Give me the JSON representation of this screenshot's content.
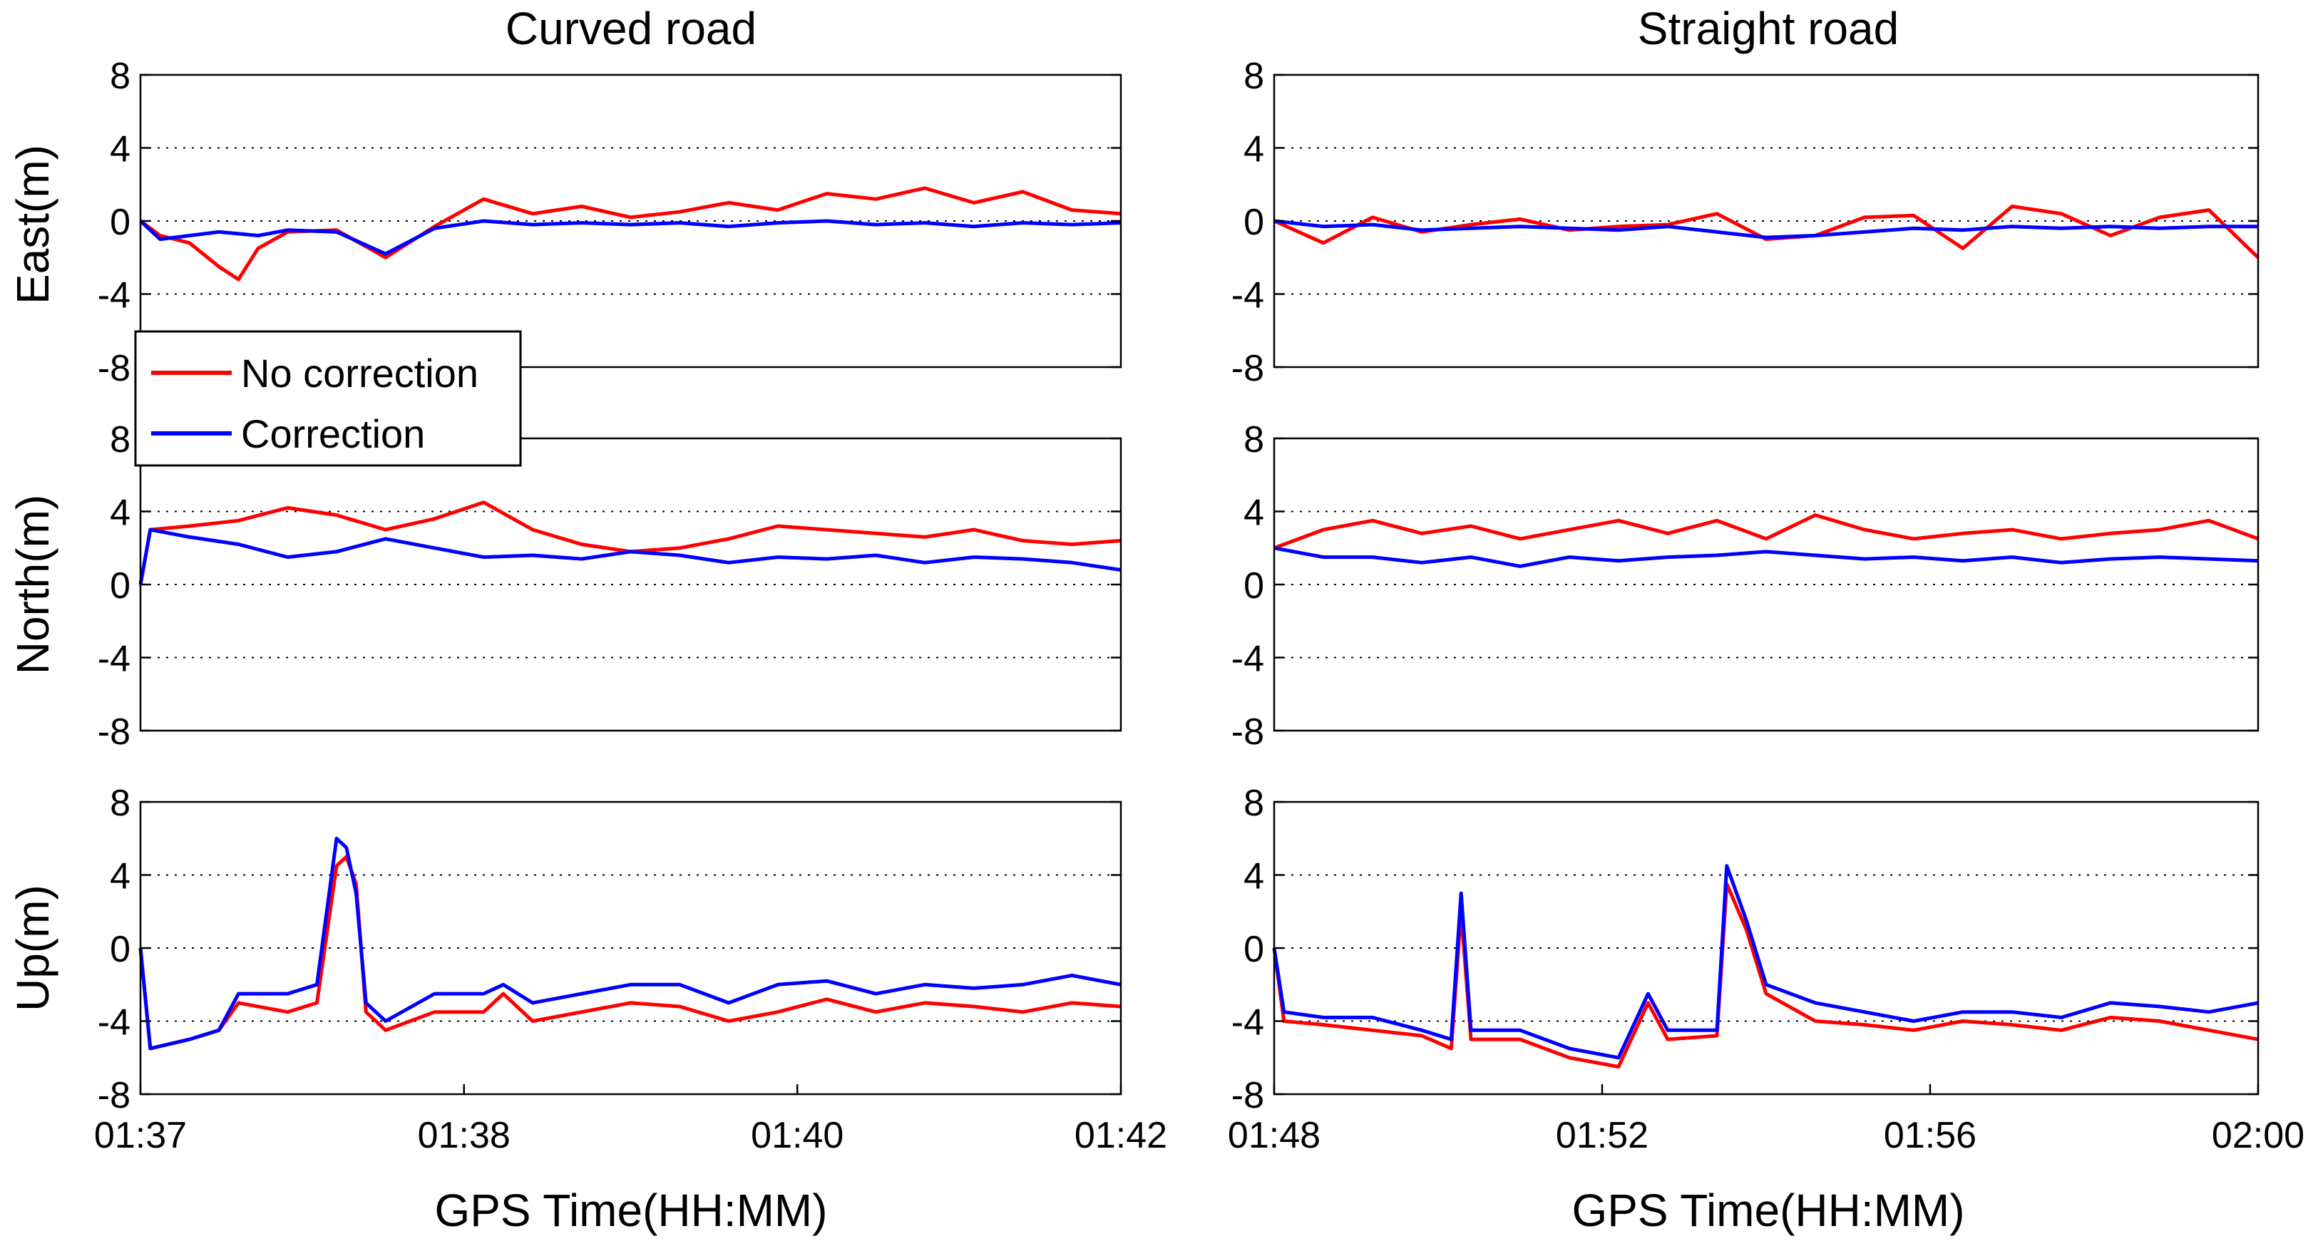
{
  "figure": {
    "col_titles": [
      "Curved road",
      "Straight road"
    ],
    "xlabel": "GPS Time(HH:MM)",
    "row_labels": [
      "East(m)",
      "North(m)",
      "Up(m)"
    ],
    "colors": {
      "no_correction": "#ff0000",
      "correction": "#0000ff",
      "grid": "#000000"
    },
    "legend": {
      "entries": [
        "No correction",
        "Correction"
      ],
      "location": "lower-left of top-left panel"
    }
  },
  "chart_data": [
    {
      "type": "line",
      "panel": "curved-east",
      "title": "Curved road",
      "ylabel": "East(m)",
      "xlabel": "",
      "ylim": [
        -8,
        8
      ],
      "yticks": [
        "8",
        "4",
        "0",
        "-4",
        "-8"
      ],
      "xticks": [],
      "grid": "dotted-y",
      "x": [
        0,
        0.02,
        0.05,
        0.08,
        0.1,
        0.12,
        0.15,
        0.2,
        0.25,
        0.3,
        0.35,
        0.4,
        0.45,
        0.5,
        0.55,
        0.6,
        0.65,
        0.7,
        0.75,
        0.8,
        0.85,
        0.9,
        0.95,
        1.0
      ],
      "series": [
        {
          "name": "No correction",
          "values": [
            0,
            -0.8,
            -1.2,
            -2.5,
            -3.2,
            -1.5,
            -0.6,
            -0.5,
            -2.0,
            -0.3,
            1.2,
            0.4,
            0.8,
            0.2,
            0.5,
            1.0,
            0.6,
            1.5,
            1.2,
            1.8,
            1.0,
            1.6,
            0.6,
            0.4
          ]
        },
        {
          "name": "Correction",
          "values": [
            0,
            -1.0,
            -0.8,
            -0.6,
            -0.7,
            -0.8,
            -0.5,
            -0.6,
            -1.8,
            -0.4,
            0.0,
            -0.2,
            -0.1,
            -0.2,
            -0.1,
            -0.3,
            -0.1,
            0.0,
            -0.2,
            -0.1,
            -0.3,
            -0.1,
            -0.2,
            -0.1
          ]
        }
      ]
    },
    {
      "type": "line",
      "panel": "straight-east",
      "title": "Straight road",
      "ylabel": "",
      "xlabel": "",
      "ylim": [
        -8,
        8
      ],
      "yticks": [
        "8",
        "4",
        "0",
        "-4",
        "-8"
      ],
      "xticks": [],
      "grid": "dotted-y",
      "x": [
        0,
        0.05,
        0.1,
        0.15,
        0.2,
        0.25,
        0.3,
        0.35,
        0.4,
        0.45,
        0.5,
        0.55,
        0.6,
        0.65,
        0.7,
        0.75,
        0.8,
        0.85,
        0.9,
        0.95,
        1.0
      ],
      "series": [
        {
          "name": "No correction",
          "values": [
            0,
            -1.2,
            0.2,
            -0.6,
            -0.2,
            0.1,
            -0.5,
            -0.3,
            -0.2,
            0.4,
            -1.0,
            -0.8,
            0.2,
            0.3,
            -1.5,
            0.8,
            0.4,
            -0.8,
            0.2,
            0.6,
            -2.0
          ]
        },
        {
          "name": "Correction",
          "values": [
            0,
            -0.3,
            -0.2,
            -0.5,
            -0.4,
            -0.3,
            -0.4,
            -0.5,
            -0.3,
            -0.6,
            -0.9,
            -0.8,
            -0.6,
            -0.4,
            -0.5,
            -0.3,
            -0.4,
            -0.3,
            -0.4,
            -0.3,
            -0.3
          ]
        }
      ]
    },
    {
      "type": "line",
      "panel": "curved-north",
      "title": "",
      "ylabel": "North(m)",
      "xlabel": "",
      "ylim": [
        -8,
        8
      ],
      "yticks": [
        "8",
        "4",
        "0",
        "-4",
        "-8"
      ],
      "xticks": [],
      "grid": "dotted-y",
      "x": [
        0,
        0.01,
        0.05,
        0.1,
        0.15,
        0.2,
        0.25,
        0.3,
        0.35,
        0.4,
        0.45,
        0.5,
        0.55,
        0.6,
        0.65,
        0.7,
        0.75,
        0.8,
        0.85,
        0.9,
        0.95,
        1.0
      ],
      "series": [
        {
          "name": "No correction",
          "values": [
            0,
            3.0,
            3.2,
            3.5,
            4.2,
            3.8,
            3.0,
            3.6,
            4.5,
            3.0,
            2.2,
            1.8,
            2.0,
            2.5,
            3.2,
            3.0,
            2.8,
            2.6,
            3.0,
            2.4,
            2.2,
            2.4
          ]
        },
        {
          "name": "Correction",
          "values": [
            0,
            3.0,
            2.6,
            2.2,
            1.5,
            1.8,
            2.5,
            2.0,
            1.5,
            1.6,
            1.4,
            1.8,
            1.6,
            1.2,
            1.5,
            1.4,
            1.6,
            1.2,
            1.5,
            1.4,
            1.2,
            0.8
          ]
        }
      ]
    },
    {
      "type": "line",
      "panel": "straight-north",
      "title": "",
      "ylabel": "",
      "xlabel": "",
      "ylim": [
        -8,
        8
      ],
      "yticks": [
        "8",
        "4",
        "0",
        "-4",
        "-8"
      ],
      "xticks": [],
      "grid": "dotted-y",
      "x": [
        0,
        0.05,
        0.1,
        0.15,
        0.2,
        0.25,
        0.3,
        0.35,
        0.4,
        0.45,
        0.5,
        0.55,
        0.6,
        0.65,
        0.7,
        0.75,
        0.8,
        0.85,
        0.9,
        0.95,
        1.0
      ],
      "series": [
        {
          "name": "No correction",
          "values": [
            2.0,
            3.0,
            3.5,
            2.8,
            3.2,
            2.5,
            3.0,
            3.5,
            2.8,
            3.5,
            2.5,
            3.8,
            3.0,
            2.5,
            2.8,
            3.0,
            2.5,
            2.8,
            3.0,
            3.5,
            2.5
          ]
        },
        {
          "name": "Correction",
          "values": [
            2.0,
            1.5,
            1.5,
            1.2,
            1.5,
            1.0,
            1.5,
            1.3,
            1.5,
            1.6,
            1.8,
            1.6,
            1.4,
            1.5,
            1.3,
            1.5,
            1.2,
            1.4,
            1.5,
            1.4,
            1.3
          ]
        }
      ]
    },
    {
      "type": "line",
      "panel": "curved-up",
      "title": "",
      "ylabel": "Up(m)",
      "xlabel": "GPS Time(HH:MM)",
      "ylim": [
        -8,
        8
      ],
      "yticks": [
        "8",
        "4",
        "0",
        "-4",
        "-8"
      ],
      "xticks": [
        "01:37",
        "01:38",
        "01:40",
        "01:42"
      ],
      "grid": "dotted-y",
      "x": [
        0,
        0.01,
        0.05,
        0.08,
        0.1,
        0.15,
        0.18,
        0.2,
        0.21,
        0.22,
        0.23,
        0.25,
        0.3,
        0.35,
        0.37,
        0.4,
        0.45,
        0.5,
        0.55,
        0.6,
        0.65,
        0.7,
        0.75,
        0.8,
        0.85,
        0.9,
        0.95,
        1.0
      ],
      "series": [
        {
          "name": "No correction",
          "values": [
            0,
            -5.5,
            -5.0,
            -4.5,
            -3.0,
            -3.5,
            -3.0,
            4.5,
            5.0,
            3.5,
            -3.5,
            -4.5,
            -3.5,
            -3.5,
            -2.5,
            -4.0,
            -3.5,
            -3.0,
            -3.2,
            -4.0,
            -3.5,
            -2.8,
            -3.5,
            -3.0,
            -3.2,
            -3.5,
            -3.0,
            -3.2
          ]
        },
        {
          "name": "Correction",
          "values": [
            0,
            -5.5,
            -5.0,
            -4.5,
            -2.5,
            -2.5,
            -2.0,
            6.0,
            5.5,
            3.0,
            -3.0,
            -4.0,
            -2.5,
            -2.5,
            -2.0,
            -3.0,
            -2.5,
            -2.0,
            -2.0,
            -3.0,
            -2.0,
            -1.8,
            -2.5,
            -2.0,
            -2.2,
            -2.0,
            -1.5,
            -2.0
          ]
        }
      ]
    },
    {
      "type": "line",
      "panel": "straight-up",
      "title": "",
      "ylabel": "",
      "xlabel": "GPS Time(HH:MM)",
      "ylim": [
        -8,
        8
      ],
      "yticks": [
        "8",
        "4",
        "0",
        "-4",
        "-8"
      ],
      "xticks": [
        "01:48",
        "01:52",
        "01:56",
        "02:00"
      ],
      "grid": "dotted-y",
      "x": [
        0,
        0.01,
        0.05,
        0.1,
        0.15,
        0.18,
        0.19,
        0.2,
        0.25,
        0.3,
        0.35,
        0.38,
        0.4,
        0.45,
        0.46,
        0.48,
        0.5,
        0.55,
        0.6,
        0.65,
        0.7,
        0.75,
        0.8,
        0.85,
        0.9,
        0.95,
        1.0
      ],
      "series": [
        {
          "name": "No correction",
          "values": [
            0,
            -4.0,
            -4.2,
            -4.5,
            -4.8,
            -5.5,
            2.0,
            -5.0,
            -5.0,
            -6.0,
            -6.5,
            -3.0,
            -5.0,
            -4.8,
            3.5,
            1.0,
            -2.5,
            -4.0,
            -4.2,
            -4.5,
            -4.0,
            -4.2,
            -4.5,
            -3.8,
            -4.0,
            -4.5,
            -5.0
          ]
        },
        {
          "name": "Correction",
          "values": [
            0,
            -3.5,
            -3.8,
            -3.8,
            -4.5,
            -5.0,
            3.0,
            -4.5,
            -4.5,
            -5.5,
            -6.0,
            -2.5,
            -4.5,
            -4.5,
            4.5,
            1.5,
            -2.0,
            -3.0,
            -3.5,
            -4.0,
            -3.5,
            -3.5,
            -3.8,
            -3.0,
            -3.2,
            -3.5,
            -3.0
          ]
        }
      ]
    }
  ]
}
